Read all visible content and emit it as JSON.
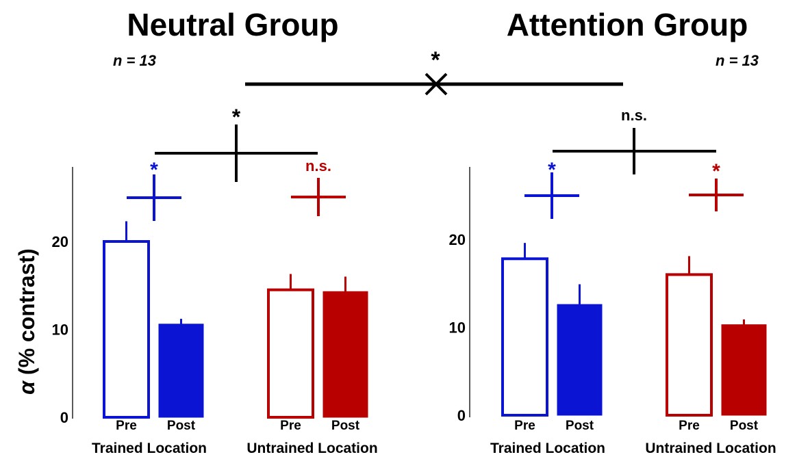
{
  "colors": {
    "trained": "#0a14d2",
    "untrained": "#b80000",
    "black": "#000000"
  },
  "ylabel_symbol": "α",
  "ylabel_rest": " (% contrast)",
  "interaction": {
    "marker": "*"
  },
  "chart_data": [
    {
      "type": "bar",
      "title": "Neutral Group",
      "n_label": "n = 13",
      "ylabel": "α (% contrast)",
      "yticks": [
        0,
        10,
        20
      ],
      "ylim": [
        0,
        25
      ],
      "bar_labels": [
        "Pre",
        "Post",
        "Pre",
        "Post"
      ],
      "group_labels": [
        "Trained Location",
        "Untrained Location"
      ],
      "series": [
        {
          "group": "Trained Location",
          "pre": 20.0,
          "pre_err": 2.3,
          "post": 10.6,
          "post_err": 0.6,
          "sig": "*"
        },
        {
          "group": "Untrained Location",
          "pre": 14.5,
          "pre_err": 1.8,
          "post": 14.3,
          "post_err": 1.7,
          "sig": "n.s."
        }
      ],
      "interaction_sig": "*"
    },
    {
      "type": "bar",
      "title": "Attention Group",
      "n_label": "n = 13",
      "ylabel": "",
      "yticks": [
        0,
        10,
        20
      ],
      "ylim": [
        0,
        25
      ],
      "bar_labels": [
        "Pre",
        "Post",
        "Pre",
        "Post"
      ],
      "group_labels": [
        "Trained Location",
        "Untrained Location"
      ],
      "series": [
        {
          "group": "Trained Location",
          "pre": 17.8,
          "pre_err": 1.8,
          "post": 12.6,
          "post_err": 2.3,
          "sig": "*"
        },
        {
          "group": "Untrained Location",
          "pre": 16.0,
          "pre_err": 2.1,
          "post": 10.3,
          "post_err": 0.6,
          "sig": "*"
        }
      ],
      "interaction_sig": "n.s."
    }
  ]
}
